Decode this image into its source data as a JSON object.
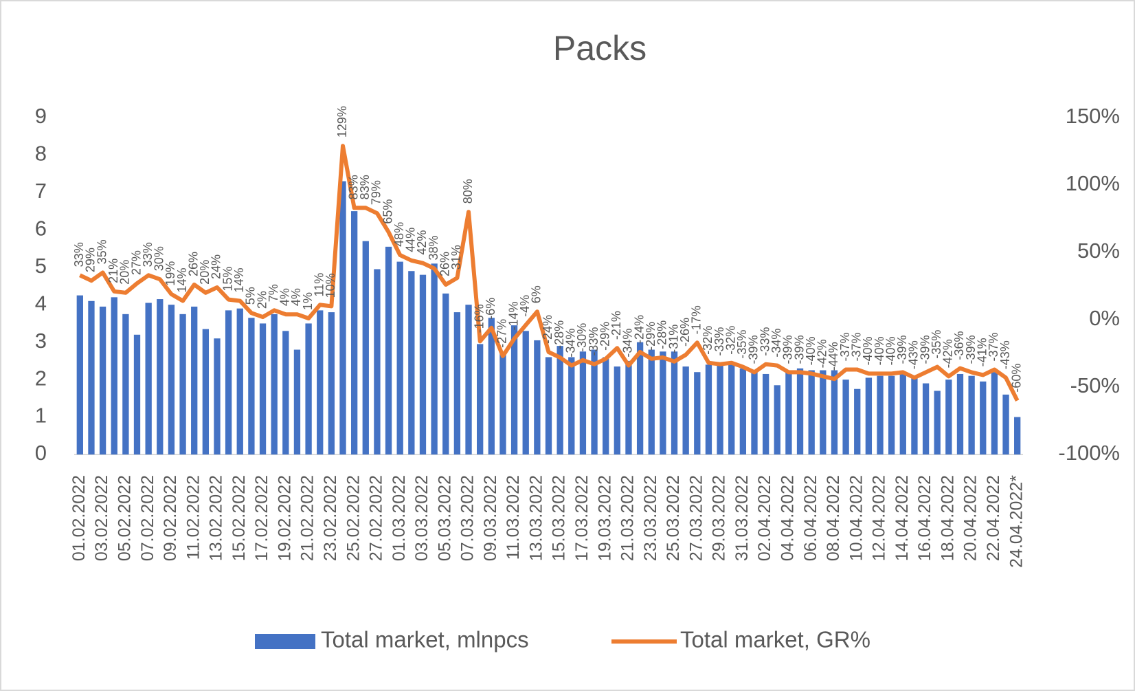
{
  "chart_data": {
    "type": "bar-line",
    "title": "Packs",
    "categories": [
      "01.02.2022",
      null,
      "03.02.2022",
      null,
      "05.02.2022",
      null,
      "07.02.2022",
      null,
      "09.02.2022",
      null,
      "11.02.2022",
      null,
      "13.02.2022",
      null,
      "15.02.2022",
      null,
      "17.02.2022",
      null,
      "19.02.2022",
      null,
      "21.02.2022",
      null,
      "23.02.2022",
      null,
      "25.02.2022",
      null,
      "27.02.2022",
      null,
      "01.03.2022",
      null,
      "03.03.2022",
      null,
      "05.03.2022",
      null,
      "07.03.2022",
      null,
      "09.03.2022",
      null,
      "11.03.2022",
      null,
      "13.03.2022",
      null,
      "15.03.2022",
      null,
      "17.03.2022",
      null,
      "19.03.2022",
      null,
      "21.03.2022",
      null,
      "23.03.2022",
      null,
      "25.03.2022",
      null,
      "27.03.2022",
      null,
      "29.03.2022",
      null,
      "31.03.2022",
      null,
      "02.04.2022",
      null,
      "04.04.2022",
      null,
      "06.04.2022",
      null,
      "08.04.2022",
      null,
      "10.04.2022",
      null,
      "12.04.2022",
      null,
      "14.04.2022",
      null,
      "16.04.2022",
      null,
      "18.04.2022",
      null,
      "20.04.2022",
      null,
      "22.04.2022",
      null,
      "24.04.2022*"
    ],
    "series": [
      {
        "name": "Total market, mlnpcs",
        "color": "#4472c4",
        "type": "bar",
        "values": [
          4.25,
          4.1,
          3.95,
          4.2,
          3.75,
          3.2,
          4.05,
          4.15,
          4.0,
          3.75,
          3.95,
          3.35,
          3.1,
          3.85,
          3.9,
          3.65,
          3.5,
          3.75,
          3.3,
          2.8,
          3.5,
          3.85,
          3.8,
          7.3,
          6.5,
          5.7,
          4.95,
          5.55,
          5.15,
          4.9,
          4.8,
          5.1,
          4.3,
          3.8,
          4.0,
          2.95,
          3.65,
          2.7,
          3.45,
          3.3,
          3.05,
          2.6,
          2.9,
          2.6,
          2.75,
          2.8,
          2.6,
          2.35,
          2.5,
          3.0,
          2.8,
          2.75,
          2.75,
          2.35,
          2.2,
          2.4,
          2.4,
          2.4,
          2.3,
          2.2,
          2.15,
          1.85,
          2.2,
          2.3,
          2.25,
          2.25,
          2.25,
          2.0,
          1.75,
          2.05,
          2.1,
          2.1,
          2.15,
          2.05,
          1.9,
          1.7,
          2.0,
          2.15,
          2.1,
          1.95,
          2.2,
          1.6,
          1.0
        ]
      },
      {
        "name": "Total market, GR%",
        "color": "#ed7d31",
        "type": "line",
        "axis": "y2",
        "values": [
          33,
          29,
          35,
          21,
          20,
          27,
          33,
          30,
          19,
          14,
          26,
          20,
          24,
          15,
          14,
          5,
          2,
          7,
          4,
          4,
          1,
          11,
          10,
          129,
          83,
          83,
          79,
          65,
          48,
          44,
          42,
          38,
          26,
          31,
          80,
          -16,
          -6,
          -27,
          -14,
          -4,
          6,
          -24,
          -28,
          -34,
          -30,
          -33,
          -29,
          -21,
          -34,
          -24,
          -29,
          -28,
          -31,
          -26,
          -17,
          -32,
          -33,
          -32,
          -35,
          -39,
          -33,
          -34,
          -39,
          -39,
          -40,
          -42,
          -44,
          -37,
          -37,
          -40,
          -40,
          -40,
          -39,
          -43,
          -39,
          -35,
          -42,
          -36,
          -39,
          -41,
          -37,
          -43,
          -60
        ],
        "value_labels": [
          "33%",
          "29%",
          "35%",
          "21%",
          "20%",
          "27%",
          "33%",
          "30%",
          "19%",
          "14%",
          "26%",
          "20%",
          "24%",
          "15%",
          "14%",
          "5%",
          "2%",
          "7%",
          "4%",
          "4%",
          "1%",
          "11%",
          "10%",
          "129%",
          "83%",
          "83%",
          "79%",
          "65%",
          "48%",
          "44%",
          "42%",
          "38%",
          "26%",
          "31%",
          "80%",
          "-16%",
          "-6%",
          "-27%",
          "-14%",
          "-4%",
          "6%",
          "-24%",
          "-28%",
          "-34%",
          "-30%",
          "-33%",
          "-29%",
          "-21%",
          "-34%",
          "-24%",
          "-29%",
          "-28%",
          "-31%",
          "-26%",
          "-17%",
          "-32%",
          "-33%",
          "-32%",
          "-35%",
          "-39%",
          "-33%",
          "-34%",
          "-39%",
          "-39%",
          "-40%",
          "-42%",
          "-44%",
          "-37%",
          "-37%",
          "-40%",
          "-40%",
          "-40%",
          "-39%",
          "-43%",
          "-39%",
          "-35%",
          "-42%",
          "-36%",
          "-39%",
          "-41%",
          "-37%",
          "-43%",
          "-60%"
        ]
      }
    ],
    "ylim": [
      0,
      9
    ],
    "yticks": [
      0,
      1,
      2,
      3,
      4,
      5,
      6,
      7,
      8,
      9
    ],
    "y2lim": [
      -100,
      150
    ],
    "y2ticks": [
      {
        "value": -100,
        "label": "-100%"
      },
      {
        "value": -50,
        "label": "-50%"
      },
      {
        "value": 0,
        "label": "0%"
      },
      {
        "value": 50,
        "label": "50%"
      },
      {
        "value": 100,
        "label": "100%"
      },
      {
        "value": 150,
        "label": "150%"
      }
    ],
    "legend": "bottom"
  }
}
